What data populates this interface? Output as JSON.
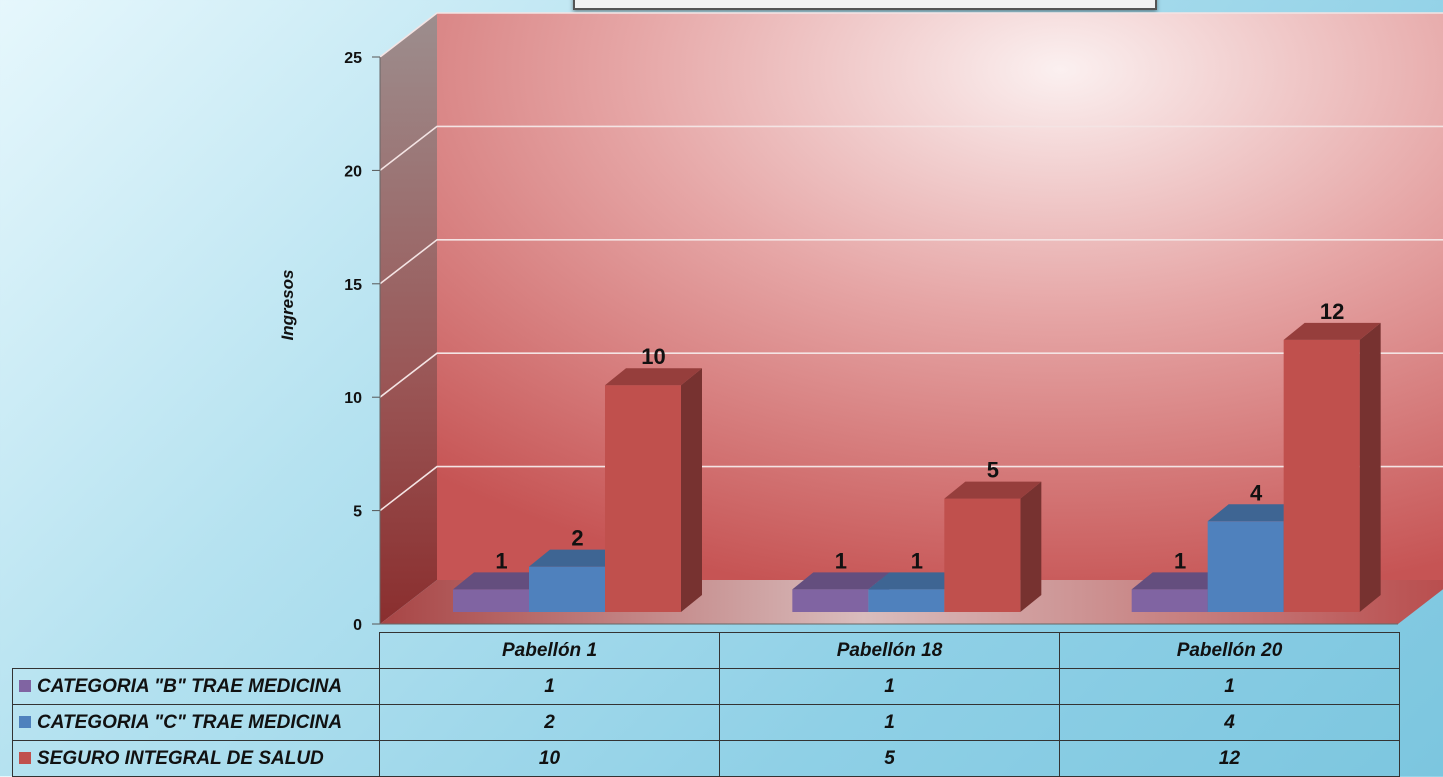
{
  "chart_data": {
    "type": "bar",
    "categories": [
      "Pabellón 1",
      "Pabellón 18",
      "Pabellón 20"
    ],
    "ylabel": "Ingresos",
    "ylim": [
      0,
      25
    ],
    "yticks": [
      "0",
      "5",
      "10",
      "15",
      "20",
      "25"
    ],
    "legend": "data-table",
    "grid": true,
    "series": [
      {
        "name": "CATEGORIA \"B\" TRAE MEDICINA",
        "values": [
          1,
          1,
          1
        ],
        "color": "#8064a2"
      },
      {
        "name": "CATEGORIA \"C\" TRAE MEDICINA",
        "values": [
          2,
          1,
          4
        ],
        "color": "#4f81bd"
      },
      {
        "name": "SEGURO INTEGRAL DE SALUD",
        "values": [
          10,
          5,
          12
        ],
        "color": "#c0504d"
      }
    ]
  },
  "table": {
    "rows": [
      {
        "label": "CATEGORIA \"B\" TRAE MEDICINA",
        "cells": [
          "1",
          "1",
          "1"
        ]
      },
      {
        "label": "CATEGORIA \"C\" TRAE MEDICINA",
        "cells": [
          "2",
          "1",
          "4"
        ]
      },
      {
        "label": "SEGURO INTEGRAL DE SALUD",
        "cells": [
          "10",
          "5",
          "12"
        ]
      }
    ]
  }
}
